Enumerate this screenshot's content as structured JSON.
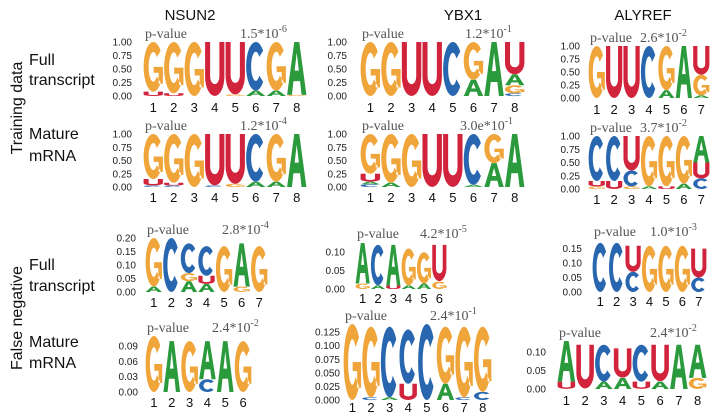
{
  "columns": [
    "NSUN2",
    "YBX1",
    "ALYREF"
  ],
  "groups": [
    "Training data",
    "False negative"
  ],
  "rows": [
    [
      "Full",
      "transcript"
    ],
    [
      "Mature",
      "mRNA"
    ],
    [
      "Full",
      "transcript"
    ],
    [
      "Mature",
      "mRNA"
    ]
  ],
  "colors": {
    "A": "#2a9a3c",
    "C": "#2867b0",
    "G": "#f0a53a",
    "U": "#d2233c"
  },
  "logos": [
    {
      "row": 0,
      "col": 0,
      "p_label": "p-value",
      "p_value": "1.5*10",
      "p_exp": "-6",
      "y_max": 1.0,
      "y_ticks": [
        "0.00",
        "0.25",
        "0.50",
        "0.75",
        "1.00"
      ],
      "x_labels": [
        "1",
        "2",
        "3",
        "4",
        "5",
        "6",
        "7",
        "8"
      ],
      "stacks": [
        [
          [
            "U",
            0.08
          ],
          [
            "G",
            0.92
          ]
        ],
        [
          [
            "U",
            0.05
          ],
          [
            "G",
            0.95
          ]
        ],
        [
          [
            "G",
            1
          ]
        ],
        [
          [
            "U",
            1
          ]
        ],
        [
          [
            "G",
            0.03
          ],
          [
            "U",
            0.97
          ]
        ],
        [
          [
            "A",
            0.1
          ],
          [
            "C",
            0.9
          ]
        ],
        [
          [
            "A",
            0.1
          ],
          [
            "G",
            0.9
          ]
        ],
        [
          [
            "G",
            0.02
          ],
          [
            "A",
            0.98
          ]
        ]
      ]
    },
    {
      "row": 0,
      "col": 1,
      "p_label": "p-value",
      "p_value": "1.2*10",
      "p_exp": "-1",
      "y_max": 1.0,
      "y_ticks": [
        "0.00",
        "0.25",
        "0.50",
        "0.75",
        "1.00"
      ],
      "x_labels": [
        "1",
        "2",
        "3",
        "4",
        "5",
        "6",
        "7",
        "8"
      ],
      "stacks": [
        [
          [
            "G",
            1
          ]
        ],
        [
          [
            "G",
            1
          ]
        ],
        [
          [
            "U",
            1
          ]
        ],
        [
          [
            "U",
            1
          ]
        ],
        [
          [
            "C",
            1
          ]
        ],
        [
          [
            "A",
            0.3
          ],
          [
            "G",
            0.7
          ]
        ],
        [
          [
            "A",
            1
          ]
        ],
        [
          [
            "C",
            0.05
          ],
          [
            "G",
            0.15
          ],
          [
            "A",
            0.2
          ],
          [
            "U",
            0.6
          ]
        ]
      ]
    },
    {
      "row": 0,
      "col": 2,
      "p_label": "p-value",
      "p_value": "2.6*10",
      "p_exp": "-2",
      "y_max": 1.0,
      "y_ticks": [
        "0.00",
        "0.25",
        "0.50",
        "0.75",
        "1.00"
      ],
      "x_labels": [
        "1",
        "2",
        "3",
        "4",
        "5",
        "6",
        "7"
      ],
      "stacks": [
        [
          [
            "G",
            1
          ]
        ],
        [
          [
            "U",
            1
          ]
        ],
        [
          [
            "U",
            1
          ]
        ],
        [
          [
            "C",
            1
          ]
        ],
        [
          [
            "A",
            0.15
          ],
          [
            "G",
            0.85
          ]
        ],
        [
          [
            "A",
            1
          ]
        ],
        [
          [
            "A",
            0.05
          ],
          [
            "G",
            0.4
          ],
          [
            "U",
            0.55
          ]
        ]
      ]
    },
    {
      "row": 1,
      "col": 0,
      "p_label": "p-value",
      "p_value": "1.2*10",
      "p_exp": "-4",
      "y_max": 1.0,
      "y_ticks": [
        "0.00",
        "0.25",
        "0.50",
        "0.75",
        "1.00"
      ],
      "x_labels": [
        "1",
        "2",
        "3",
        "4",
        "5",
        "6",
        "7",
        "8"
      ],
      "stacks": [
        [
          [
            "C",
            0.03
          ],
          [
            "U",
            0.12
          ],
          [
            "G",
            0.85
          ]
        ],
        [
          [
            "C",
            0.03
          ],
          [
            "U",
            0.05
          ],
          [
            "G",
            0.92
          ]
        ],
        [
          [
            "G",
            1
          ]
        ],
        [
          [
            "C",
            0.03
          ],
          [
            "U",
            0.97
          ]
        ],
        [
          [
            "G",
            0.06
          ],
          [
            "U",
            0.94
          ]
        ],
        [
          [
            "A",
            0.1
          ],
          [
            "C",
            0.9
          ]
        ],
        [
          [
            "A",
            0.1
          ],
          [
            "G",
            0.9
          ]
        ],
        [
          [
            "A",
            1
          ]
        ]
      ]
    },
    {
      "row": 1,
      "col": 1,
      "p_label": "p-value",
      "p_value": "3.0e*10",
      "p_exp": "-1",
      "y_max": 1.0,
      "y_ticks": [
        "0.00",
        "0.25",
        "0.50",
        "0.75",
        "1.00"
      ],
      "x_labels": [
        "1",
        "2",
        "3",
        "4",
        "5",
        "6",
        "7",
        "8"
      ],
      "stacks": [
        [
          [
            "C",
            0.05
          ],
          [
            "A",
            0.05
          ],
          [
            "U",
            0.15
          ],
          [
            "G",
            0.75
          ]
        ],
        [
          [
            "A",
            0.08
          ],
          [
            "G",
            0.92
          ]
        ],
        [
          [
            "G",
            1
          ]
        ],
        [
          [
            "U",
            1
          ]
        ],
        [
          [
            "U",
            1
          ]
        ],
        [
          [
            "A",
            0.04
          ],
          [
            "C",
            0.96
          ]
        ],
        [
          [
            "A",
            0.45
          ],
          [
            "G",
            0.55
          ]
        ],
        [
          [
            "A",
            1
          ]
        ]
      ]
    },
    {
      "row": 1,
      "col": 2,
      "p_label": "p-value",
      "p_value": "3.7*10",
      "p_exp": "-2",
      "y_max": 1.0,
      "y_ticks": [
        "0.00",
        "0.25",
        "0.50",
        "0.75",
        "1.00"
      ],
      "x_labels": [
        "1",
        "2",
        "3",
        "4",
        "5",
        "6",
        "7"
      ],
      "stacks": [
        [
          [
            "G",
            0.05
          ],
          [
            "U",
            0.1
          ],
          [
            "C",
            0.85
          ]
        ],
        [
          [
            "U",
            0.15
          ],
          [
            "C",
            0.85
          ]
        ],
        [
          [
            "G",
            0.05
          ],
          [
            "C",
            0.3
          ],
          [
            "U",
            0.65
          ]
        ],
        [
          [
            "A",
            0.05
          ],
          [
            "G",
            0.95
          ]
        ],
        [
          [
            "U",
            0.05
          ],
          [
            "G",
            0.95
          ]
        ],
        [
          [
            "A",
            0.1
          ],
          [
            "G",
            0.9
          ]
        ],
        [
          [
            "C",
            0.2
          ],
          [
            "U",
            0.3
          ],
          [
            "A",
            0.5
          ]
        ]
      ]
    },
    {
      "row": 2,
      "col": 0,
      "p_label": "p-value",
      "p_value": "2.8*10",
      "p_exp": "-4",
      "y_max": 0.2,
      "y_ticks": [
        "0.00",
        "0.05",
        "0.10",
        "0.15",
        "0.20"
      ],
      "x_labels": [
        "1",
        "2",
        "3",
        "4",
        "5",
        "6",
        "7"
      ],
      "stacks": [
        [
          [
            "A",
            0.02
          ],
          [
            "G",
            0.18
          ]
        ],
        [
          [
            "C",
            0.2
          ]
        ],
        [
          [
            "A",
            0.04
          ],
          [
            "G",
            0.03
          ],
          [
            "C",
            0.11
          ]
        ],
        [
          [
            "A",
            0.03
          ],
          [
            "U",
            0.03
          ],
          [
            "C",
            0.11
          ]
        ],
        [
          [
            "G",
            0.17
          ]
        ],
        [
          [
            "G",
            0.02
          ],
          [
            "A",
            0.16
          ]
        ],
        [
          [
            "G",
            0.17
          ]
        ]
      ]
    },
    {
      "row": 2,
      "col": 1,
      "p_label": "p-value",
      "p_value": "4.2*10",
      "p_exp": "-5",
      "y_max": 0.125,
      "y_ticks": [
        "0.00",
        "0.05",
        "0.10"
      ],
      "x_labels": [
        "1",
        "2",
        "3",
        "4",
        "5",
        "6"
      ],
      "stacks": [
        [
          [
            "G",
            0.015
          ],
          [
            "A",
            0.11
          ]
        ],
        [
          [
            "A",
            0.01
          ],
          [
            "C",
            0.11
          ]
        ],
        [
          [
            "U",
            0.01
          ],
          [
            "A",
            0.11
          ]
        ],
        [
          [
            "A",
            0.01
          ],
          [
            "G",
            0.1
          ]
        ],
        [
          [
            "A",
            0.015
          ],
          [
            "G",
            0.085
          ]
        ],
        [
          [
            "G",
            0.02
          ],
          [
            "U",
            0.1
          ]
        ]
      ]
    },
    {
      "row": 2,
      "col": 2,
      "p_label": "p-value",
      "p_value": "1.0*10",
      "p_exp": "-3",
      "y_max": 0.18,
      "y_ticks": [
        "0.00",
        "0.05",
        "0.10",
        "0.15"
      ],
      "x_labels": [
        "1",
        "2",
        "3",
        "4",
        "5",
        "6",
        "7"
      ],
      "stacks": [
        [
          [
            "C",
            0.17
          ]
        ],
        [
          [
            "C",
            0.17
          ]
        ],
        [
          [
            "C",
            0.07
          ],
          [
            "U",
            0.09
          ]
        ],
        [
          [
            "G",
            0.16
          ]
        ],
        [
          [
            "G",
            0.16
          ]
        ],
        [
          [
            "G",
            0.16
          ]
        ],
        [
          [
            "C",
            0.05
          ],
          [
            "U",
            0.1
          ]
        ]
      ]
    },
    {
      "row": 3,
      "col": 0,
      "p_label": "p-value",
      "p_value": "2.4*10",
      "p_exp": "-2",
      "y_max": 0.11,
      "y_ticks": [
        "0.00",
        "0.03",
        "0.06",
        "0.09"
      ],
      "x_labels": [
        "1",
        "2",
        "3",
        "4",
        "5",
        "6"
      ],
      "stacks": [
        [
          [
            "G",
            0.11
          ]
        ],
        [
          [
            "A",
            0.1
          ]
        ],
        [
          [
            "G",
            0.1
          ]
        ],
        [
          [
            "C",
            0.025
          ],
          [
            "A",
            0.075
          ]
        ],
        [
          [
            "A",
            0.1
          ]
        ],
        [
          [
            "G",
            0.1
          ]
        ]
      ]
    },
    {
      "row": 3,
      "col": 1,
      "p_label": "p-value",
      "p_value": "2.4*10",
      "p_exp": "-1",
      "y_max": 0.14,
      "y_ticks": [
        "0.000",
        "0.025",
        "0.050",
        "0.075",
        "0.100",
        "0.125"
      ],
      "x_labels": [
        "1",
        "2",
        "3",
        "4",
        "5",
        "6",
        "7",
        "8"
      ],
      "stacks": [
        [
          [
            "G",
            0.14
          ]
        ],
        [
          [
            "C",
            0.005
          ],
          [
            "G",
            0.13
          ]
        ],
        [
          [
            "A",
            0.005
          ],
          [
            "C",
            0.13
          ]
        ],
        [
          [
            "U",
            0.03
          ],
          [
            "C",
            0.1
          ]
        ],
        [
          [
            "C",
            0.14
          ]
        ],
        [
          [
            "A",
            0.03
          ],
          [
            "G",
            0.105
          ]
        ],
        [
          [
            "C",
            0.005
          ],
          [
            "G",
            0.13
          ]
        ],
        [
          [
            "C",
            0.015
          ],
          [
            "G",
            0.12
          ]
        ]
      ]
    },
    {
      "row": 3,
      "col": 2,
      "p_label": "p-value",
      "p_value": "2.4*10",
      "p_exp": "-2",
      "y_max": 0.13,
      "y_ticks": [
        "0.00",
        "0.05",
        "0.10"
      ],
      "x_labels": [
        "1",
        "2",
        "3",
        "4",
        "5",
        "6",
        "7",
        "8"
      ],
      "stacks": [
        [
          [
            "U",
            0.02
          ],
          [
            "A",
            0.11
          ]
        ],
        [
          [
            "U",
            0.12
          ]
        ],
        [
          [
            "A",
            0.02
          ],
          [
            "C",
            0.1
          ]
        ],
        [
          [
            "A",
            0.03
          ],
          [
            "U",
            0.08
          ]
        ],
        [
          [
            "U",
            0.02
          ],
          [
            "C",
            0.1
          ]
        ],
        [
          [
            "A",
            0.02
          ],
          [
            "U",
            0.1
          ]
        ],
        [
          [
            "A",
            0.12
          ]
        ],
        [
          [
            "G",
            0.03
          ],
          [
            "A",
            0.09
          ]
        ]
      ]
    }
  ]
}
